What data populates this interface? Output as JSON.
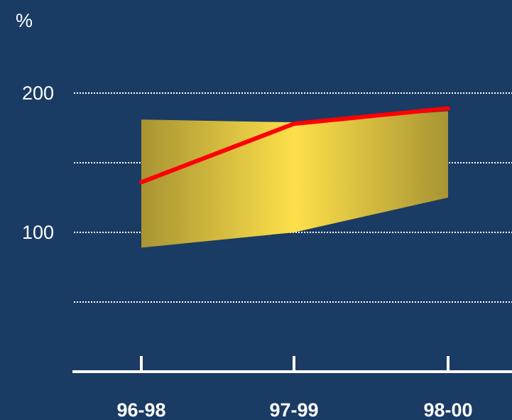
{
  "chart_data": {
    "type": "area",
    "unit_label": "%",
    "categories": [
      "96-98",
      "97-99",
      "98-00"
    ],
    "band": {
      "upper": [
        181,
        179,
        187
      ],
      "lower": [
        89,
        100,
        125
      ]
    },
    "series": [
      {
        "values": [
          136,
          178,
          189
        ]
      }
    ],
    "ylim": [
      0,
      220
    ],
    "y_tick_labels": [
      "100",
      "200"
    ],
    "gridlines": [
      50,
      100,
      150,
      200
    ],
    "grid": true,
    "colors": {
      "background": "#1a3b63",
      "band_light": "#fde04a",
      "band_dark": "#a89433",
      "line": "#ff0000",
      "grid": "#ffffff",
      "text": "#ffffff"
    }
  }
}
